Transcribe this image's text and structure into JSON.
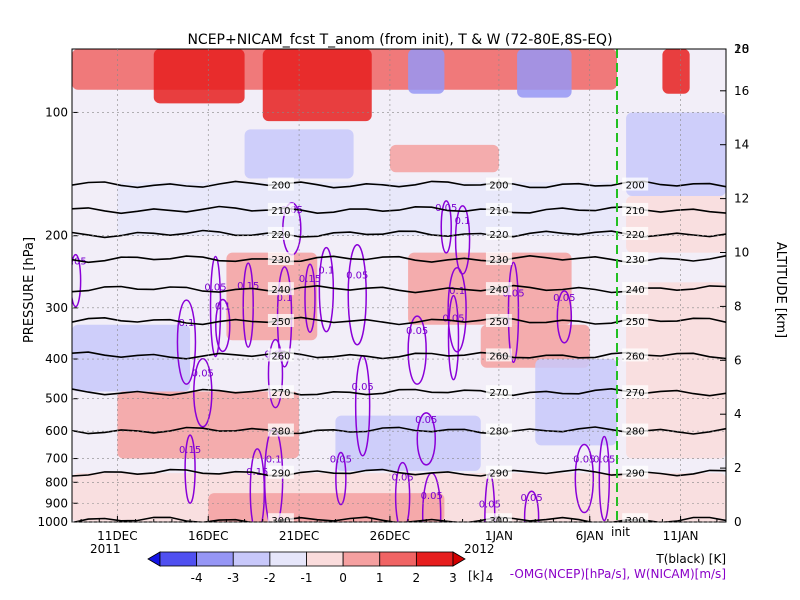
{
  "chart_data": {
    "type": "heatmap",
    "title": "NCEP+NICAM_fcst T_anom (from init), T & W   (72-80E,8S-EQ)",
    "ylabel": "PRESSURE [hPa]",
    "y2label": "ALTITUDE [km]",
    "x_tick_labels": [
      "11DEC",
      "16DEC",
      "21DEC",
      "26DEC",
      "1JAN",
      "6JAN",
      "11JAN"
    ],
    "x_tick_days": [
      0,
      5,
      10,
      15,
      21,
      26,
      31
    ],
    "x_range_days": [
      -2.5,
      33.5
    ],
    "year_start": "2011",
    "year_end": "2012",
    "init_day": 27.5,
    "init_label": "init",
    "y_tick_labels": [
      "100",
      "200",
      "300",
      "400",
      "500",
      "600",
      "700",
      "800",
      "900",
      "1000"
    ],
    "y_ticks_hpa": [
      100,
      200,
      300,
      400,
      500,
      600,
      700,
      800,
      900,
      1000
    ],
    "y_range_hpa": [
      1000,
      70
    ],
    "y2_tick_labels": [
      "0",
      "2",
      "4",
      "6",
      "8",
      "10",
      "12",
      "14",
      "16",
      "18",
      "20"
    ],
    "y2_ticks_km": [
      0,
      2,
      4,
      6,
      8,
      10,
      12,
      14,
      16,
      18,
      20
    ],
    "temperature_contours": [
      {
        "label": "200",
        "p": 150
      },
      {
        "label": "210",
        "p": 173
      },
      {
        "label": "220",
        "p": 198
      },
      {
        "label": "230",
        "p": 228
      },
      {
        "label": "240",
        "p": 270
      },
      {
        "label": "250",
        "p": 323
      },
      {
        "label": "260",
        "p": 392
      },
      {
        "label": "270",
        "p": 482
      },
      {
        "label": "280",
        "p": 598
      },
      {
        "label": "290",
        "p": 758
      },
      {
        "label": "300",
        "p": 990
      }
    ],
    "w_contour_labels": [
      {
        "text": "0.05",
        "day": -2.3,
        "p": 230
      },
      {
        "text": "0.05",
        "day": 8.7,
        "p": 388
      },
      {
        "text": "0.1",
        "day": 3.8,
        "p": 325
      },
      {
        "text": "0.05",
        "day": 5.4,
        "p": 266
      },
      {
        "text": "0.1",
        "day": 5.8,
        "p": 296
      },
      {
        "text": "0.05",
        "day": 4.7,
        "p": 432
      },
      {
        "text": "0.15",
        "day": 7.2,
        "p": 264
      },
      {
        "text": "0.1",
        "day": 9.2,
        "p": 282
      },
      {
        "text": "0.05",
        "day": 9.6,
        "p": 172
      },
      {
        "text": "0.15",
        "day": 10.6,
        "p": 254
      },
      {
        "text": "0.1",
        "day": 11.5,
        "p": 242
      },
      {
        "text": "0.05",
        "day": 13.2,
        "p": 249
      },
      {
        "text": "0.05",
        "day": 18.1,
        "p": 170
      },
      {
        "text": "0.1",
        "day": 19.0,
        "p": 183
      },
      {
        "text": "0.1",
        "day": 18.7,
        "p": 271
      },
      {
        "text": "0.05",
        "day": 21.8,
        "p": 275
      },
      {
        "text": "0.05",
        "day": 24.6,
        "p": 282
      },
      {
        "text": "0.05",
        "day": 16.5,
        "p": 340
      },
      {
        "text": "0.05",
        "day": 18.5,
        "p": 317
      },
      {
        "text": "0.05",
        "day": 13.5,
        "p": 465
      },
      {
        "text": "0.05",
        "day": 17.0,
        "p": 560
      },
      {
        "text": "0.15",
        "day": 4.0,
        "p": 664
      },
      {
        "text": "0.15",
        "day": 7.7,
        "p": 750
      },
      {
        "text": "0.1",
        "day": 8.6,
        "p": 700
      },
      {
        "text": "0.05",
        "day": 12.3,
        "p": 700
      },
      {
        "text": "0.05",
        "day": 15.7,
        "p": 775
      },
      {
        "text": "0.05",
        "day": 17.3,
        "p": 860
      },
      {
        "text": "0.05",
        "day": 20.5,
        "p": 900
      },
      {
        "text": "0.05",
        "day": 22.8,
        "p": 870
      },
      {
        "text": "0.05",
        "day": 25.7,
        "p": 700
      },
      {
        "text": "0.05",
        "day": 26.8,
        "p": 700
      }
    ],
    "anomaly_patches": [
      {
        "d0": -2.5,
        "d1": 27.5,
        "p0": 70,
        "p1": 88,
        "v": 2.5
      },
      {
        "d0": 8,
        "d1": 14,
        "p0": 70,
        "p1": 105,
        "v": 3.5
      },
      {
        "d0": 2,
        "d1": 7,
        "p0": 70,
        "p1": 95,
        "v": 3
      },
      {
        "d0": 16,
        "d1": 18,
        "p0": 70,
        "p1": 90,
        "v": -2.5
      },
      {
        "d0": 22,
        "d1": 25,
        "p0": 70,
        "p1": 92,
        "v": -2.5
      },
      {
        "d0": 30,
        "d1": 31.5,
        "p0": 70,
        "p1": 90,
        "v": 3.5
      },
      {
        "d0": 7,
        "d1": 13,
        "p0": 110,
        "p1": 145,
        "v": -1.5
      },
      {
        "d0": 15,
        "d1": 21,
        "p0": 120,
        "p1": 140,
        "v": 1.5
      },
      {
        "d0": 0,
        "d1": 27.5,
        "p0": 148,
        "p1": 200,
        "v": -1
      },
      {
        "d0": 28,
        "d1": 33.5,
        "p0": 100,
        "p1": 160,
        "v": -2
      },
      {
        "d0": 28,
        "d1": 33.5,
        "p0": 160,
        "p1": 220,
        "v": 0.8
      },
      {
        "d0": 6,
        "d1": 11,
        "p0": 220,
        "p1": 360,
        "v": 1.5
      },
      {
        "d0": 16,
        "d1": 25,
        "p0": 220,
        "p1": 330,
        "v": 1.2
      },
      {
        "d0": 20,
        "d1": 26,
        "p0": 330,
        "p1": 420,
        "v": 1.8
      },
      {
        "d0": -2.5,
        "d1": 4,
        "p0": 330,
        "p1": 480,
        "v": -1.5
      },
      {
        "d0": 23,
        "d1": 27.5,
        "p0": 400,
        "p1": 650,
        "v": -1.8
      },
      {
        "d0": 0,
        "d1": 10,
        "p0": 480,
        "p1": 700,
        "v": 1.2
      },
      {
        "d0": 12,
        "d1": 20,
        "p0": 550,
        "p1": 750,
        "v": -1.2
      },
      {
        "d0": 28,
        "d1": 33.5,
        "p0": 260,
        "p1": 700,
        "v": 0.6
      },
      {
        "d0": -2.5,
        "d1": 33.5,
        "p0": 760,
        "p1": 1000,
        "v": 0.8
      },
      {
        "d0": 5,
        "d1": 18,
        "p0": 850,
        "p1": 1000,
        "v": 1.8
      }
    ],
    "colorbar": {
      "tick_labels": [
        "-4",
        "-3",
        "-2",
        "-1",
        "0",
        "1",
        "2",
        "3",
        "4"
      ],
      "colors": [
        "#1414e6",
        "#5050f0",
        "#9696f5",
        "#c8c8fa",
        "#e6e6fa",
        "#fadcdc",
        "#f5a0a0",
        "#f06464",
        "#e61e1e",
        "#d20000"
      ],
      "unit": "[k]"
    },
    "legend_lines": [
      "T(black) [K]",
      "-OMG(NCEP)[hPa/s], W(NICAM)[m/s]"
    ]
  }
}
